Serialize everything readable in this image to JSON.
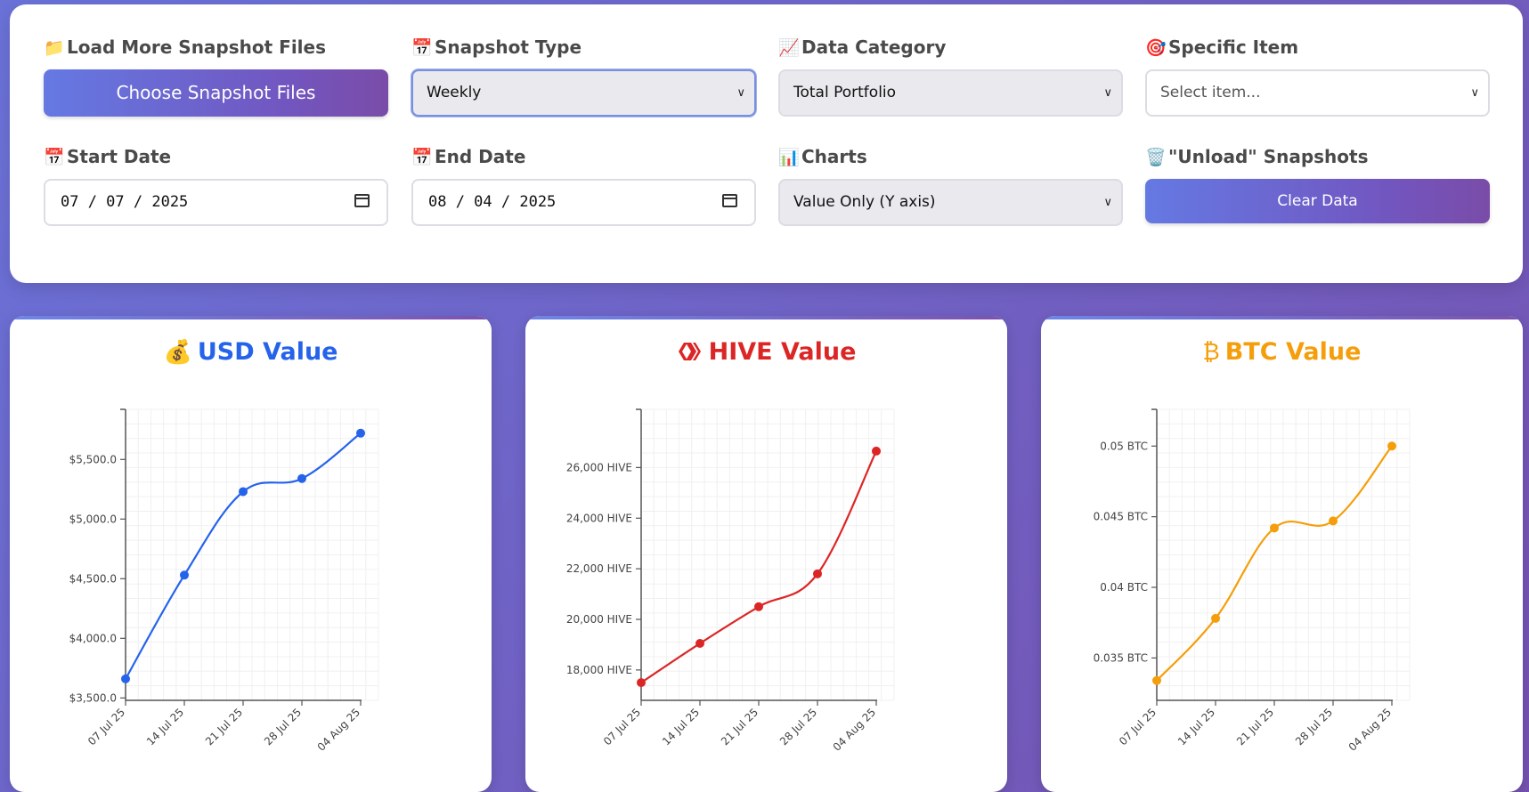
{
  "controls": {
    "load": {
      "icon": "📁",
      "label": "Load More Snapshot Files",
      "button": "Choose Snapshot Files"
    },
    "snapshot_type": {
      "icon": "📅",
      "label": "Snapshot Type",
      "value": "Weekly"
    },
    "data_category": {
      "icon": "📈",
      "label": "Data Category",
      "value": "Total Portfolio"
    },
    "specific_item": {
      "icon": "🎯",
      "label": "Specific Item",
      "placeholder": "Select item..."
    },
    "start_date": {
      "icon": "📅",
      "label": "Start Date",
      "value": "07 / 07 / 2025"
    },
    "end_date": {
      "icon": "📅",
      "label": "End Date",
      "value": "08 / 04 / 2025"
    },
    "charts": {
      "icon": "📊",
      "label": "Charts",
      "value": "Value Only (Y axis)"
    },
    "unload": {
      "icon": "🗑️",
      "label": "\"Unload\" Snapshots",
      "button": "Clear Data"
    }
  },
  "chart_data": [
    {
      "type": "line",
      "title": "USD Value",
      "icon": "💰",
      "color": "#2563eb",
      "categories": [
        "07 Jul 25",
        "14 Jul 25",
        "21 Jul 25",
        "28 Jul 25",
        "04 Aug 25"
      ],
      "values": [
        3660,
        4530,
        5230,
        5340,
        5720
      ],
      "ylim": [
        3480,
        5920
      ],
      "yticks": [
        3500,
        4000,
        4500,
        5000,
        5500
      ],
      "ytick_labels": [
        "$3,500.0",
        "$4,000.0",
        "$4,500.0",
        "$5,000.0",
        "$5,500.0"
      ],
      "grid": true
    },
    {
      "type": "line",
      "title": "HIVE Value",
      "icon": "hive-logo",
      "color": "#dc2626",
      "categories": [
        "07 Jul 25",
        "14 Jul 25",
        "21 Jul 25",
        "28 Jul 25",
        "04 Aug 25"
      ],
      "values": [
        17500,
        19050,
        20500,
        21800,
        26650
      ],
      "ylim": [
        16800,
        28300
      ],
      "yticks": [
        18000,
        20000,
        22000,
        24000,
        26000
      ],
      "ytick_labels": [
        "18,000 HIVE",
        "20,000 HIVE",
        "22,000 HIVE",
        "24,000 HIVE",
        "26,000 HIVE"
      ],
      "grid": true
    },
    {
      "type": "line",
      "title": "BTC Value",
      "icon": "₿",
      "color": "#f59e0b",
      "categories": [
        "07 Jul 25",
        "14 Jul 25",
        "21 Jul 25",
        "28 Jul 25",
        "04 Aug 25"
      ],
      "values": [
        0.0334,
        0.0378,
        0.0442,
        0.0447,
        0.05
      ],
      "ylim": [
        0.032,
        0.0526
      ],
      "yticks": [
        0.035,
        0.04,
        0.045,
        0.05
      ],
      "ytick_labels": [
        "0.035 BTC",
        "0.04 BTC",
        "0.045 BTC",
        "0.05 BTC"
      ],
      "grid": true
    }
  ]
}
